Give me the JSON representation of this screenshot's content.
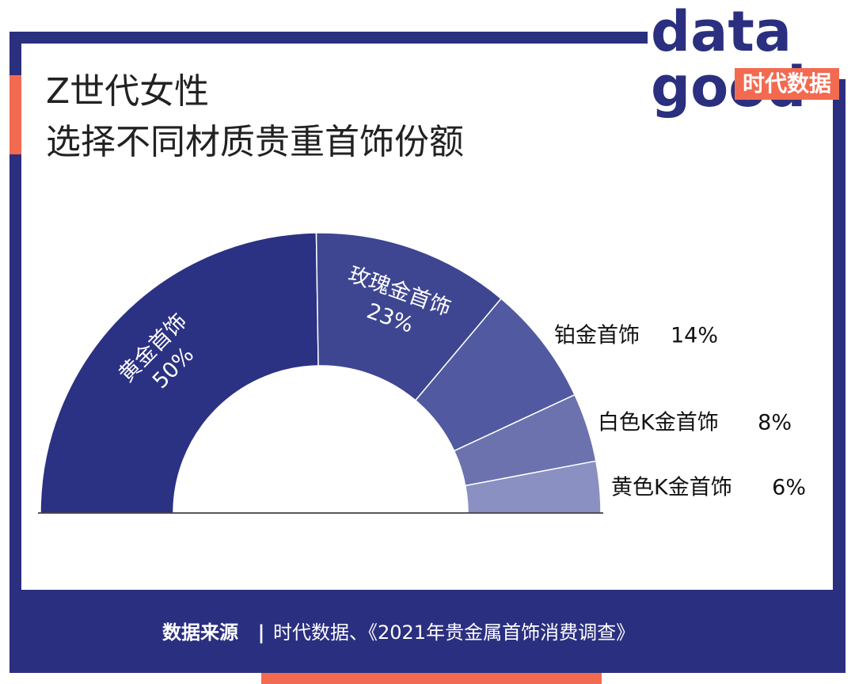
{
  "logo": {
    "top": "data",
    "bottom": "good",
    "name": "时代数据"
  },
  "chart_data": {
    "type": "half-donut",
    "title": [
      "Z世代女性",
      "选择不同材质贵重首饰份额"
    ],
    "categories": [
      "黄金首饰",
      "玫瑰金首饰",
      "铂金首饰",
      "白色K金首饰",
      "黄色K金首饰"
    ],
    "values": [
      50,
      23,
      14,
      8,
      6
    ],
    "value_labels": [
      "50%",
      "23%",
      "14%",
      "8%",
      "6%"
    ],
    "colors": [
      "#2b3183",
      "#3e4691",
      "#5159a0",
      "#6b72ae",
      "#8a90c2"
    ]
  },
  "source": {
    "label": "数据来源",
    "separator": "|",
    "text": "时代数据、《2021年贵金属首饰消费调查》"
  }
}
